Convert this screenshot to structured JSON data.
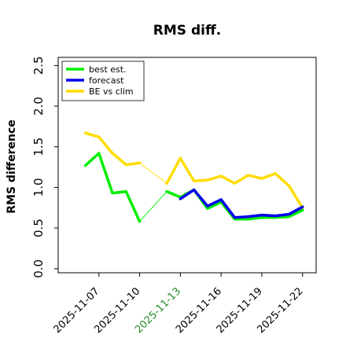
{
  "chart_data": {
    "type": "line",
    "title": "RMS diff.",
    "xlabel": "",
    "ylabel": "RMS difference",
    "ylim": [
      -0.05,
      2.6
    ],
    "yticks": [
      0.0,
      0.5,
      1.0,
      1.5,
      2.0,
      2.5
    ],
    "ytick_labels": [
      "0.0",
      "0.5",
      "1.0",
      "1.5",
      "2.0",
      "2.5"
    ],
    "xlim": [
      "2025-11-04",
      "2025-11-23"
    ],
    "xticks": [
      "2025-11-07",
      "2025-11-10",
      "2025-11-13",
      "2025-11-16",
      "2025-11-19",
      "2025-11-22"
    ],
    "xtick_labels": [
      "2025-11-07",
      "2025-11-10",
      "2025-11-13",
      "2025-11-16",
      "2025-11-19",
      "2025-11-22"
    ],
    "highlighted_tick_label": "2025-11-13",
    "grid": false,
    "legend_position": "top-left",
    "series": [
      {
        "name": "best est.",
        "color": "#00ee00",
        "x": [
          "2025-11-06",
          "2025-11-07",
          "2025-11-08",
          "2025-11-09",
          "2025-11-10",
          "2025-11-12",
          "2025-11-13",
          "2025-11-14",
          "2025-11-15",
          "2025-11-16",
          "2025-11-17",
          "2025-11-18",
          "2025-11-19",
          "2025-11-20",
          "2025-11-21",
          "2025-11-22"
        ],
        "values": [
          1.27,
          1.42,
          0.93,
          0.95,
          0.58,
          0.95,
          0.88,
          0.97,
          0.74,
          0.82,
          0.61,
          0.61,
          0.63,
          0.63,
          0.64,
          0.72
        ],
        "thin_gaps": [
          [
            4,
            5
          ]
        ]
      },
      {
        "name": "forecast",
        "color": "#0000ee",
        "x": [
          "2025-11-13",
          "2025-11-14",
          "2025-11-15",
          "2025-11-16",
          "2025-11-17",
          "2025-11-18",
          "2025-11-19",
          "2025-11-20",
          "2025-11-21",
          "2025-11-22"
        ],
        "values": [
          0.86,
          0.97,
          0.77,
          0.85,
          0.63,
          0.64,
          0.66,
          0.65,
          0.67,
          0.76
        ],
        "thin_gaps": []
      },
      {
        "name": "BE vs clim",
        "color": "#ffdd00",
        "x": [
          "2025-11-06",
          "2025-11-07",
          "2025-11-08",
          "2025-11-09",
          "2025-11-10",
          "2025-11-12",
          "2025-11-13",
          "2025-11-14",
          "2025-11-15",
          "2025-11-16",
          "2025-11-17",
          "2025-11-18",
          "2025-11-19",
          "2025-11-20",
          "2025-11-21",
          "2025-11-22"
        ],
        "values": [
          1.67,
          1.62,
          1.42,
          1.28,
          1.3,
          1.05,
          1.36,
          1.08,
          1.09,
          1.14,
          1.05,
          1.15,
          1.11,
          1.17,
          1.02,
          0.75
        ],
        "thin_gaps": [
          [
            4,
            5
          ]
        ]
      }
    ]
  }
}
